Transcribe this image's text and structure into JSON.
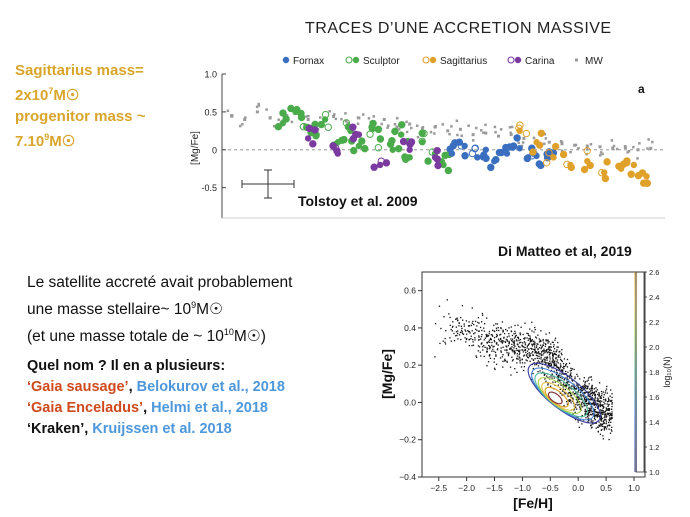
{
  "slide": {
    "title": "TRACES D’UNE ACCRETION MASSIVE",
    "sagittarius": {
      "line1": "Sagittarius mass=",
      "line2_base": "2x10",
      "line2_exp": "7",
      "line2_unit": "M",
      "line3": "progenitor mass ~",
      "line4_base": "7.10",
      "line4_exp": "9",
      "line4_unit": "M"
    },
    "credit_tolstoy": "Tolstoy et al. 2009",
    "credit_dimatteo": "Di Matteo et al, 2019",
    "text": {
      "line1": "Le satellite accreté avait probablement",
      "line2_base": "une masse stellaire~ 10",
      "line2_exp": "9",
      "line2_unit": "M",
      "line3_base": "(et une masse totale de ~ 10",
      "line3_exp": "10",
      "line3_unit": "M",
      "line3_end": ")"
    },
    "question": {
      "header": "Quel nom ? Il en a plusieurs:",
      "items": [
        {
          "name": "‘Gaia sausage’",
          "sep": ", ",
          "ref": "Belokurov et al., 2018"
        },
        {
          "name": "‘Gaia Enceladus’",
          "sep": ", ",
          "ref": "Helmi et al., 2018"
        },
        {
          "name": "‘Kraken’",
          "sep": ", ",
          "ref": "Kruijssen et al. 2018"
        }
      ]
    }
  },
  "chart_data": [
    {
      "type": "scatter",
      "title": "",
      "xlabel": "",
      "ylabel": "[Mg/Fe]",
      "ylim": [
        -0.9,
        1.0
      ],
      "yticks": [
        "1.0",
        "0.5",
        "0",
        "-0.5"
      ],
      "panel_label": "a",
      "legend_position": "top",
      "legend": [
        {
          "name": "Fornax",
          "color": "#3a6fc0",
          "marker": "filled"
        },
        {
          "name": "Sculptor",
          "color": "#4aab4a",
          "marker": "open-filled"
        },
        {
          "name": "Sagittarius",
          "color": "#e0a12a",
          "marker": "open-filled"
        },
        {
          "name": "Carina",
          "color": "#7b3aa0",
          "marker": "open-filled"
        },
        {
          "name": "MW",
          "color": "#9a9a9a",
          "marker": "small"
        }
      ],
      "series": [
        {
          "name": "MW",
          "x": [
            0.0,
            0.03,
            0.06,
            0.09,
            0.12,
            0.15,
            0.18,
            0.21,
            0.24,
            0.27,
            0.3,
            0.33,
            0.36,
            0.39,
            0.42,
            0.45,
            0.48,
            0.51,
            0.54,
            0.57,
            0.6,
            0.63,
            0.66,
            0.69,
            0.72,
            0.75,
            0.78,
            0.81,
            0.84,
            0.87,
            0.9,
            0.93,
            0.96,
            0.99
          ],
          "y": [
            0.45,
            0.4,
            0.5,
            0.42,
            0.38,
            0.48,
            0.4,
            0.36,
            0.44,
            0.38,
            0.42,
            0.35,
            0.4,
            0.3,
            0.34,
            0.28,
            0.3,
            0.25,
            0.27,
            0.2,
            0.22,
            0.18,
            0.2,
            0.15,
            0.12,
            0.1,
            0.08,
            0.06,
            0.05,
            0.04,
            0.02,
            0.03,
            0.0,
            0.02
          ]
        },
        {
          "name": "Sculptor",
          "x": [
            0.12,
            0.15,
            0.18,
            0.2,
            0.22,
            0.25,
            0.28,
            0.3,
            0.33,
            0.35,
            0.38,
            0.4,
            0.42,
            0.45,
            0.48,
            0.5
          ],
          "y": [
            0.35,
            0.5,
            0.3,
            0.2,
            0.4,
            0.1,
            0.25,
            0.05,
            0.3,
            0.15,
            0.0,
            0.2,
            -0.1,
            0.1,
            -0.05,
            -0.2
          ]
        },
        {
          "name": "Fornax",
          "x": [
            0.52,
            0.55,
            0.58,
            0.6,
            0.62,
            0.65,
            0.68,
            0.7,
            0.72,
            0.75
          ],
          "y": [
            -0.05,
            0.05,
            -0.1,
            0.0,
            -0.15,
            -0.05,
            0.02,
            -0.1,
            -0.08,
            -0.02
          ]
        },
        {
          "name": "Sagittarius",
          "x": [
            0.68,
            0.72,
            0.76,
            0.8,
            0.84,
            0.88,
            0.92,
            0.95,
            0.98
          ],
          "y": [
            0.25,
            0.1,
            -0.1,
            -0.2,
            -0.15,
            -0.3,
            -0.25,
            -0.2,
            -0.35
          ]
        },
        {
          "name": "Carina",
          "x": [
            0.18,
            0.25,
            0.3,
            0.35,
            0.42,
            0.48
          ],
          "y": [
            0.15,
            -0.05,
            0.2,
            -0.2,
            0.0,
            -0.1
          ]
        }
      ]
    },
    {
      "type": "scatter",
      "title": "",
      "xlabel": "[Fe/H]",
      "ylabel": "[Mg/Fe]",
      "xlim": [
        -2.8,
        1.0
      ],
      "ylim": [
        -0.4,
        0.7
      ],
      "xticks": [
        "−2.5",
        "−2.0",
        "−1.5",
        "−1.0",
        "−0.5",
        "0.0",
        "0.5",
        "1.0"
      ],
      "yticks": [
        "0.6",
        "0.4",
        "0.2",
        "0.0",
        "−0.2",
        "−0.4"
      ],
      "colorbar": {
        "label": "log₁₀(N)",
        "min": 1.0,
        "max": 2.6,
        "ticks": [
          "2.6",
          "2.4",
          "2.2",
          "2.0",
          "1.8",
          "1.6",
          "1.4",
          "1.2",
          "1.0"
        ]
      },
      "series": [
        {
          "name": "",
          "x": [
            -2.3,
            -2.0,
            -1.8,
            -1.6,
            -1.4,
            -1.2,
            -1.0,
            -0.8,
            -0.6,
            -0.4,
            -0.2,
            0.0,
            0.2,
            0.4
          ],
          "y": [
            0.4,
            0.38,
            0.35,
            0.33,
            0.32,
            0.3,
            0.3,
            0.28,
            0.25,
            0.2,
            0.1,
            0.03,
            0.0,
            -0.05
          ]
        }
      ]
    }
  ]
}
